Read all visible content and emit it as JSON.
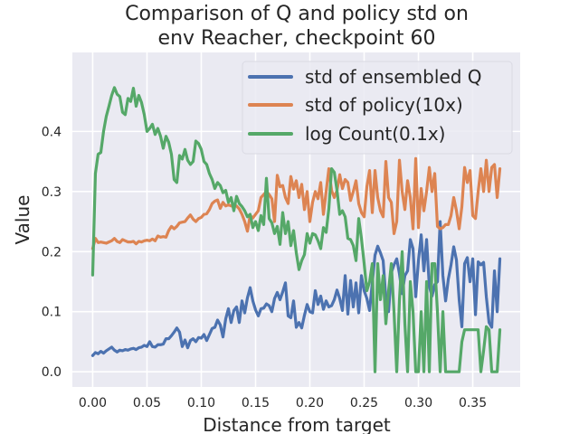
{
  "chart_data": {
    "type": "line",
    "title_lines": [
      "Comparison of Q and policy std on",
      "env Reacher, checkpoint 60"
    ],
    "xlabel": "Distance from target",
    "ylabel": "Value",
    "xlim": [
      -0.0187,
      0.3937
    ],
    "ylim": [
      -0.0253,
      0.5315
    ],
    "xticks": [
      0.0,
      0.05,
      0.1,
      0.15,
      0.2,
      0.25,
      0.3,
      0.35
    ],
    "xtick_labels": [
      "0.00",
      "0.05",
      "0.10",
      "0.15",
      "0.20",
      "0.25",
      "0.30",
      "0.35"
    ],
    "yticks": [
      0.0,
      0.1,
      0.2,
      0.3,
      0.4
    ],
    "ytick_labels": [
      "0.0",
      "0.1",
      "0.2",
      "0.3",
      "0.4"
    ],
    "grid": true,
    "legend_position": "top-right",
    "x": [
      0.0,
      0.0025,
      0.005,
      0.0075,
      0.01,
      0.0125,
      0.015,
      0.0175,
      0.02,
      0.0225,
      0.025,
      0.0275,
      0.03,
      0.0325,
      0.035,
      0.0375,
      0.04,
      0.0425,
      0.045,
      0.0475,
      0.05,
      0.0525,
      0.055,
      0.0575,
      0.06,
      0.0625,
      0.065,
      0.0675,
      0.07,
      0.0725,
      0.075,
      0.0775,
      0.08,
      0.0825,
      0.085,
      0.0875,
      0.09,
      0.0925,
      0.095,
      0.0975,
      0.1,
      0.1025,
      0.105,
      0.1075,
      0.11,
      0.1125,
      0.115,
      0.1175,
      0.12,
      0.1225,
      0.125,
      0.1275,
      0.13,
      0.1325,
      0.135,
      0.1375,
      0.14,
      0.1425,
      0.145,
      0.1475,
      0.15,
      0.1525,
      0.155,
      0.1575,
      0.16,
      0.1625,
      0.165,
      0.1675,
      0.17,
      0.1725,
      0.175,
      0.1775,
      0.18,
      0.1825,
      0.185,
      0.1875,
      0.19,
      0.1925,
      0.195,
      0.1975,
      0.2,
      0.2025,
      0.205,
      0.2075,
      0.21,
      0.2125,
      0.215,
      0.2175,
      0.22,
      0.2225,
      0.225,
      0.2275,
      0.23,
      0.2325,
      0.235,
      0.2375,
      0.24,
      0.2425,
      0.245,
      0.2475,
      0.25,
      0.2525,
      0.255,
      0.2575,
      0.26,
      0.2625,
      0.265,
      0.2675,
      0.27,
      0.2725,
      0.275,
      0.2775,
      0.28,
      0.2825,
      0.285,
      0.2875,
      0.29,
      0.2925,
      0.295,
      0.2975,
      0.3,
      0.3025,
      0.305,
      0.3075,
      0.31,
      0.3125,
      0.315,
      0.3175,
      0.32,
      0.3225,
      0.325,
      0.3275,
      0.33,
      0.3325,
      0.335,
      0.3375,
      0.34,
      0.3425,
      0.345,
      0.3475,
      0.35,
      0.3525,
      0.355,
      0.3575,
      0.36,
      0.3625,
      0.365,
      0.3675,
      0.37,
      0.3725,
      0.375
    ],
    "series": [
      {
        "name": "std of ensembled Q",
        "color": "#4c72b0",
        "values": [
          0.027,
          0.032,
          0.03,
          0.034,
          0.031,
          0.035,
          0.038,
          0.041,
          0.036,
          0.033,
          0.036,
          0.035,
          0.037,
          0.036,
          0.038,
          0.039,
          0.037,
          0.04,
          0.041,
          0.044,
          0.042,
          0.05,
          0.042,
          0.041,
          0.045,
          0.045,
          0.046,
          0.055,
          0.055,
          0.06,
          0.066,
          0.073,
          0.066,
          0.042,
          0.053,
          0.04,
          0.052,
          0.055,
          0.05,
          0.057,
          0.056,
          0.062,
          0.052,
          0.062,
          0.072,
          0.074,
          0.086,
          0.078,
          0.058,
          0.088,
          0.105,
          0.082,
          0.102,
          0.108,
          0.082,
          0.118,
          0.098,
          0.123,
          0.14,
          0.118,
          0.103,
          0.093,
          0.105,
          0.106,
          0.113,
          0.11,
          0.1,
          0.122,
          0.132,
          0.12,
          0.133,
          0.148,
          0.093,
          0.09,
          0.118,
          0.074,
          0.082,
          0.073,
          0.094,
          0.112,
          0.1,
          0.098,
          0.135,
          0.112,
          0.126,
          0.104,
          0.118,
          0.108,
          0.11,
          0.12,
          0.136,
          0.122,
          0.102,
          0.16,
          0.096,
          0.152,
          0.108,
          0.148,
          0.098,
          0.16,
          0.135,
          0.122,
          0.102,
          0.148,
          0.194,
          0.209,
          0.198,
          0.185,
          0.122,
          0.1,
          0.165,
          0.178,
          0.188,
          0.163,
          0.13,
          0.16,
          0.168,
          0.22,
          0.205,
          0.125,
          0.185,
          0.228,
          0.168,
          0.22,
          0.142,
          0.126,
          0.145,
          0.15,
          0.25,
          0.16,
          0.118,
          0.154,
          0.178,
          0.208,
          0.186,
          0.12,
          0.075,
          0.18,
          0.19,
          0.15,
          0.188,
          0.095,
          0.183,
          0.178,
          0.182,
          0.125,
          0.082,
          0.074,
          0.168,
          0.1,
          0.188
        ]
      },
      {
        "name": "std of policy(10x)",
        "color": "#dd8452",
        "values": [
          0.205,
          0.222,
          0.215,
          0.216,
          0.215,
          0.214,
          0.216,
          0.218,
          0.222,
          0.217,
          0.215,
          0.22,
          0.218,
          0.216,
          0.216,
          0.217,
          0.213,
          0.217,
          0.216,
          0.218,
          0.219,
          0.218,
          0.221,
          0.218,
          0.226,
          0.224,
          0.225,
          0.224,
          0.235,
          0.242,
          0.238,
          0.242,
          0.248,
          0.249,
          0.25,
          0.256,
          0.261,
          0.254,
          0.25,
          0.255,
          0.257,
          0.262,
          0.263,
          0.27,
          0.28,
          0.284,
          0.286,
          0.272,
          0.282,
          0.276,
          0.278,
          0.276,
          0.277,
          0.276,
          0.271,
          0.262,
          0.25,
          0.234,
          0.26,
          0.256,
          0.262,
          0.268,
          0.29,
          0.295,
          0.3,
          0.295,
          0.288,
          0.25,
          0.327,
          0.308,
          0.31,
          0.29,
          0.28,
          0.325,
          0.304,
          0.318,
          0.29,
          0.312,
          0.27,
          0.3,
          0.25,
          0.282,
          0.3,
          0.288,
          0.315,
          0.262,
          0.3,
          0.338,
          0.302,
          0.29,
          0.302,
          0.328,
          0.305,
          0.32,
          0.315,
          0.285,
          0.3,
          0.318,
          0.28,
          0.265,
          0.258,
          0.308,
          0.335,
          0.265,
          0.335,
          0.29,
          0.268,
          0.258,
          0.35,
          0.29,
          0.282,
          0.23,
          0.25,
          0.352,
          0.3,
          0.27,
          0.318,
          0.29,
          0.238,
          0.355,
          0.24,
          0.305,
          0.268,
          0.3,
          0.34,
          0.3,
          0.33,
          0.242,
          0.238,
          0.24,
          0.245,
          0.245,
          0.26,
          0.29,
          0.268,
          0.238,
          0.275,
          0.34,
          0.315,
          0.335,
          0.26,
          0.255,
          0.3,
          0.338,
          0.3,
          0.352,
          0.3,
          0.34,
          0.345,
          0.29,
          0.338
        ]
      },
      {
        "name": "log Count(0.1x)",
        "color": "#55a868",
        "values": [
          0.161,
          0.33,
          0.362,
          0.365,
          0.4,
          0.425,
          0.442,
          0.46,
          0.473,
          0.462,
          0.458,
          0.432,
          0.428,
          0.455,
          0.45,
          0.472,
          0.442,
          0.46,
          0.448,
          0.428,
          0.4,
          0.405,
          0.412,
          0.395,
          0.405,
          0.392,
          0.372,
          0.392,
          0.382,
          0.362,
          0.32,
          0.315,
          0.36,
          0.354,
          0.37,
          0.352,
          0.345,
          0.35,
          0.384,
          0.38,
          0.37,
          0.35,
          0.345,
          0.33,
          0.32,
          0.305,
          0.315,
          0.31,
          0.298,
          0.302,
          0.282,
          0.29,
          0.268,
          0.292,
          0.28,
          0.275,
          0.268,
          0.258,
          0.262,
          0.24,
          0.25,
          0.235,
          0.26,
          0.245,
          0.322,
          0.255,
          0.248,
          0.23,
          0.242,
          0.212,
          0.265,
          0.23,
          0.25,
          0.21,
          0.235,
          0.198,
          0.17,
          0.185,
          0.195,
          0.23,
          0.214,
          0.23,
          0.228,
          0.218,
          0.205,
          0.24,
          0.232,
          0.272,
          0.338,
          0.332,
          0.302,
          0.262,
          0.268,
          0.258,
          0.222,
          0.22,
          0.21,
          0.185,
          0.255,
          0.222,
          0.18,
          0.135,
          0.15,
          0.18,
          0.0,
          0.18,
          0.12,
          0.16,
          0.08,
          0.135,
          0.18,
          0.1,
          0.0,
          0.12,
          0.2,
          0.08,
          0.0,
          0.15,
          0.1,
          0.0,
          0.0,
          0.1,
          0.0,
          0.15,
          0.0,
          0.18,
          0.18,
          0.1,
          0.0,
          0.1,
          0.0,
          0.0,
          0.0,
          0.0,
          0.0,
          0.0,
          0.05,
          0.07,
          0.07,
          0.07,
          0.07,
          0.07,
          0.07,
          0.0,
          0.035,
          0.075,
          0.07,
          0.0,
          0.0,
          0.0,
          0.07
        ]
      }
    ]
  }
}
